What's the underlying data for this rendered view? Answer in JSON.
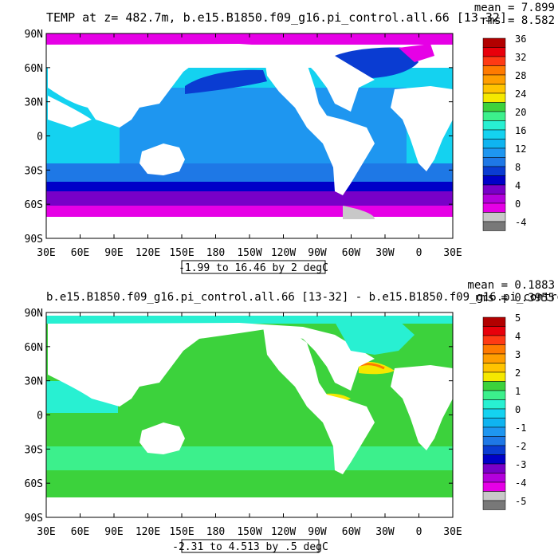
{
  "chart_data": [
    {
      "type": "heatmap",
      "title": "TEMP at z= 482.7m, b.e15.B1850.f09_g16.pi_control.all.66 [13-32]",
      "stats": {
        "mean": "mean = 7.899",
        "rms": "rms = 8.582"
      },
      "range_label": "-1.99 to 16.46 by 2 degC",
      "x_ticks": [
        "30E",
        "60E",
        "90E",
        "120E",
        "150E",
        "180",
        "150W",
        "120W",
        "90W",
        "60W",
        "30W",
        "0",
        "30E"
      ],
      "y_ticks": [
        "90N",
        "60N",
        "30N",
        "0",
        "30S",
        "60S",
        "90S"
      ],
      "colorbar": {
        "labels": [
          "36",
          "32",
          "28",
          "24",
          "20",
          "16",
          "12",
          "8",
          "4",
          "0",
          "-4"
        ],
        "colors": [
          "#b20000",
          "#e8000b",
          "#ff3a14",
          "#ff7a00",
          "#ff9e00",
          "#ffc400",
          "#f5e800",
          "#3cd23c",
          "#3cf08c",
          "#28f0d2",
          "#14d2f0",
          "#0fb4f0",
          "#1e96f0",
          "#1e78e6",
          "#0a3cd2",
          "#0000c8",
          "#7800c8",
          "#b400dc",
          "#e600e6",
          "#c8c8c8",
          "#787878"
        ]
      }
    },
    {
      "type": "heatmap",
      "title": "b.e15.B1850.f09_g16.pi_control.all.66 [13-32] - b.e15.B1850.f09_g16.pi_control",
      "stats": {
        "mean": "mean = 0.1883",
        "rms": "rms = 0.3955"
      },
      "range_label": "-2.31 to 4.513 by .5 degC",
      "x_ticks": [
        "30E",
        "60E",
        "90E",
        "120E",
        "150E",
        "180",
        "150W",
        "120W",
        "90W",
        "60W",
        "30W",
        "0",
        "30E"
      ],
      "y_ticks": [
        "90N",
        "60N",
        "30N",
        "0",
        "30S",
        "60S",
        "90S"
      ],
      "colorbar": {
        "labels": [
          "5",
          "4",
          "3",
          "2",
          "1",
          "0",
          "-1",
          "-2",
          "-3",
          "-4",
          "-5"
        ],
        "colors": [
          "#b20000",
          "#e8000b",
          "#ff3a14",
          "#ff7a00",
          "#ff9e00",
          "#ffc400",
          "#f5e800",
          "#3cd23c",
          "#3cf08c",
          "#28f0d2",
          "#14d2f0",
          "#0fb4f0",
          "#1e96f0",
          "#1e78e6",
          "#0a3cd2",
          "#0000c8",
          "#7800c8",
          "#b400dc",
          "#e600e6",
          "#c8c8c8",
          "#787878"
        ]
      }
    }
  ]
}
